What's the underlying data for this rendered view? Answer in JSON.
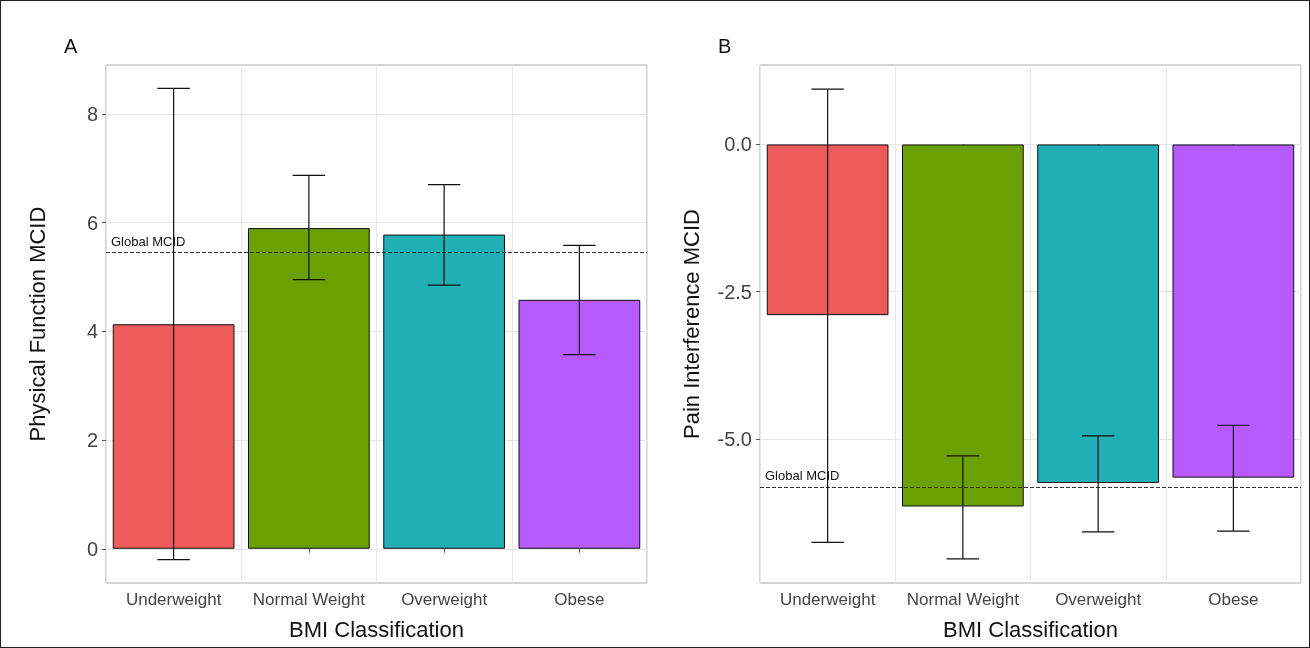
{
  "chart_data": [
    {
      "type": "bar",
      "title": "A",
      "xlabel": "BMI Classification",
      "ylabel": "Physical Function MCID",
      "categories": [
        "Underweight",
        "Normal Weight",
        "Overweight",
        "Obese"
      ],
      "values": [
        4.13,
        5.9,
        5.78,
        4.58
      ],
      "colors": [
        "#ef5b5b",
        "#6aa000",
        "#1fafb5",
        "#b55bff"
      ],
      "errors": [
        [
          -0.2,
          8.47
        ],
        [
          4.95,
          6.87
        ],
        [
          4.85,
          6.7
        ],
        [
          3.57,
          5.58
        ]
      ],
      "ylim": [
        -0.63,
        8.9
      ],
      "yticks": [
        0,
        2,
        4,
        6,
        8
      ],
      "grid": true,
      "ref_lines": [
        {
          "axis": "y",
          "value": 5.45,
          "label": "Global MCID",
          "line_style": "dashed"
        }
      ]
    },
    {
      "type": "bar",
      "title": "B",
      "xlabel": "BMI Classification",
      "ylabel": "Pain Interference MCID",
      "categories": [
        "Underweight",
        "Normal Weight",
        "Overweight",
        "Obese"
      ],
      "values": [
        -2.9,
        -6.15,
        -5.75,
        -5.66
      ],
      "colors": [
        "#ef5b5b",
        "#6aa000",
        "#1fafb5",
        "#b55bff"
      ],
      "errors": [
        [
          -6.76,
          0.94
        ],
        [
          -7.04,
          -5.29
        ],
        [
          -6.58,
          -4.95
        ],
        [
          -6.57,
          -4.77
        ]
      ],
      "ylim": [
        -7.45,
        1.35
      ],
      "yticks": [
        {
          "value": 0,
          "label": "0.0"
        },
        {
          "value": -2.5,
          "label": "-2.5"
        },
        {
          "value": -5,
          "label": "-5.0"
        }
      ],
      "grid": true,
      "ref_lines": [
        {
          "axis": "y",
          "value": -5.82,
          "label": "Global MCID",
          "line_style": "dashed"
        }
      ]
    }
  ]
}
